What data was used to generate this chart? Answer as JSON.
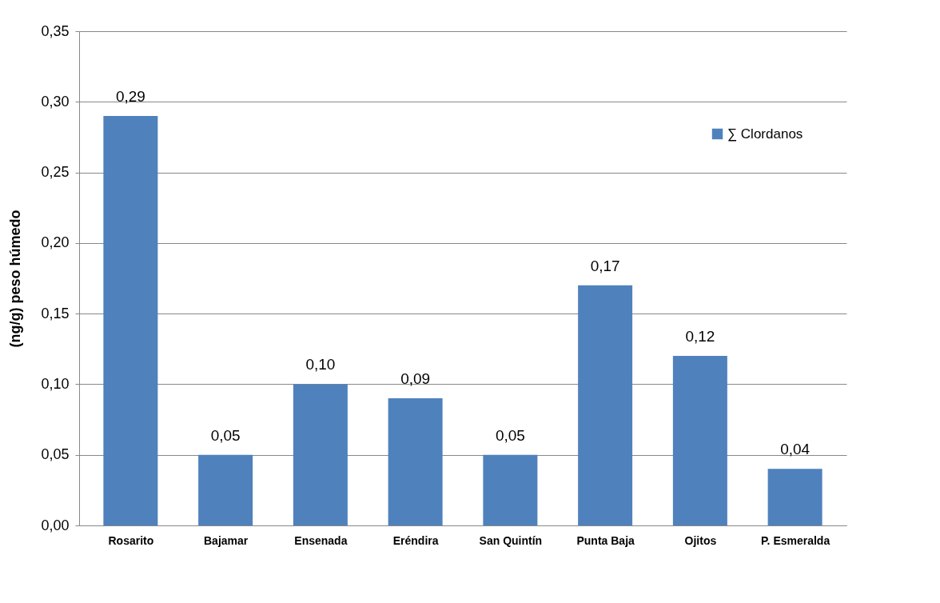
{
  "chart_data": {
    "type": "bar",
    "ylabel": "(ng/g) peso húmedo",
    "categories": [
      "Rosarito",
      "Bajamar",
      "Ensenada",
      "Eréndira",
      "San Quintín",
      "Punta Baja",
      "Ojitos",
      "P. Esmeralda"
    ],
    "series": [
      {
        "name": "∑ Clordanos",
        "color": "#4f81bd",
        "values": [
          0.29,
          0.05,
          0.1,
          0.09,
          0.05,
          0.17,
          0.12,
          0.04
        ],
        "value_labels": [
          "0,29",
          "0,05",
          "0,10",
          "0,09",
          "0,05",
          "0,17",
          "0,12",
          "0,04"
        ]
      }
    ],
    "ylim": [
      0,
      0.35
    ],
    "yticks": [
      {
        "value": 0,
        "label": "0,00"
      },
      {
        "value": 0.05,
        "label": "0,05"
      },
      {
        "value": 0.1,
        "label": "0,10"
      },
      {
        "value": 0.15,
        "label": "0,15"
      },
      {
        "value": 0.2,
        "label": "0,20"
      },
      {
        "value": 0.25,
        "label": "0,25"
      },
      {
        "value": 0.3,
        "label": "0,30"
      },
      {
        "value": 0.35,
        "label": "0,35"
      }
    ],
    "grid": "y",
    "legend": "top right"
  }
}
